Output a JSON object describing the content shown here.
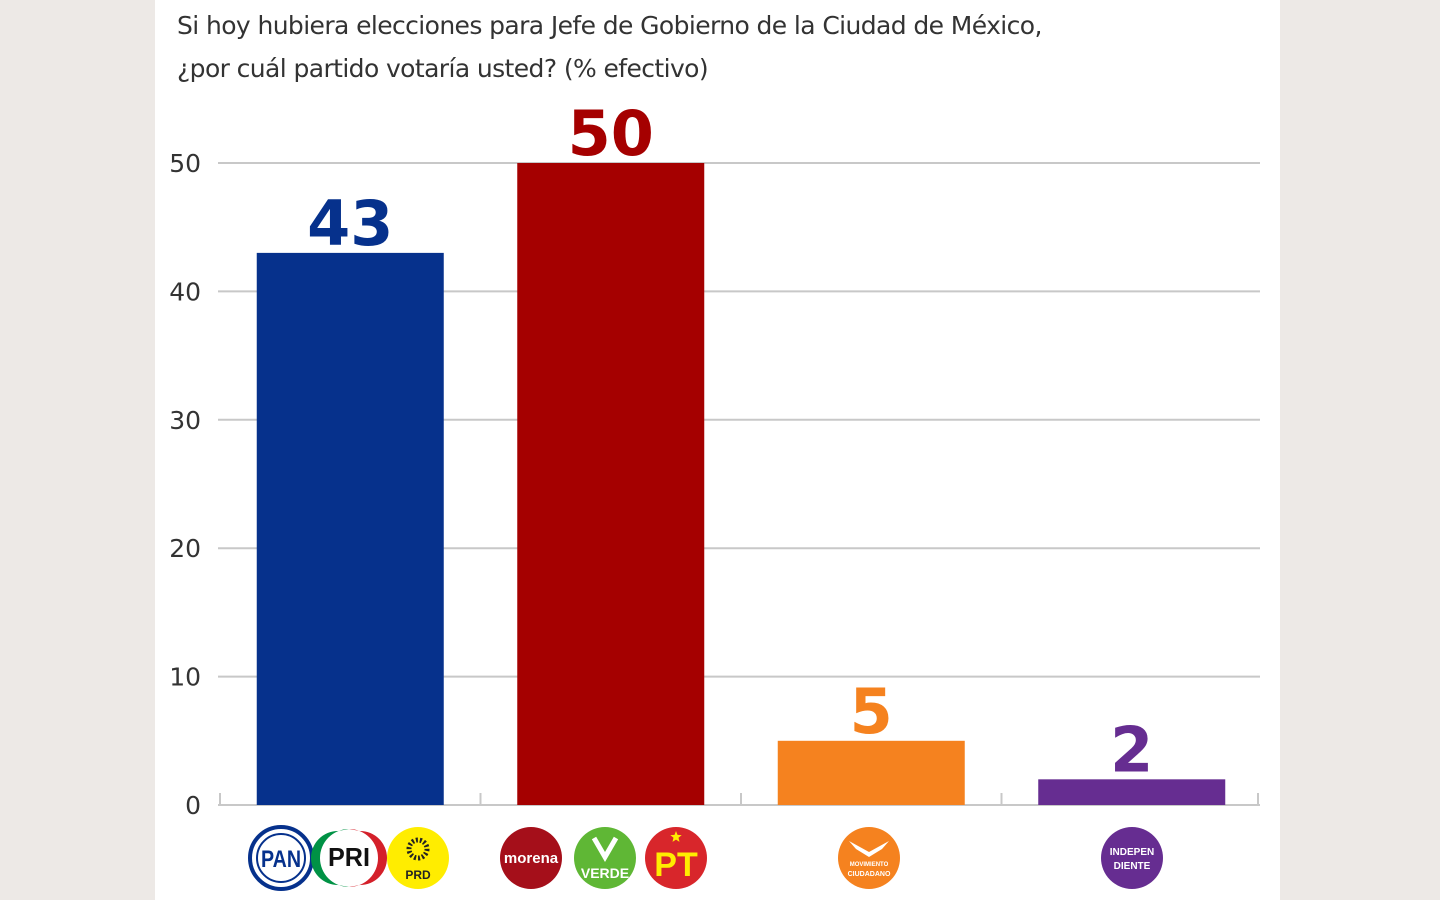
{
  "title_lines": [
    "Si hoy hubiera elecciones para Jefe de Gobierno de la Ciudad de México,",
    "¿por cuál partido votaría usted? (% efectivo)"
  ],
  "chart_data": {
    "type": "bar",
    "title": "Si hoy hubiera elecciones para Jefe de Gobierno de la Ciudad de México, ¿por cuál partido votaría usted? (% efectivo)",
    "xlabel": "",
    "ylabel": "",
    "ylim": [
      0,
      50
    ],
    "yticks": [
      0,
      10,
      20,
      30,
      40,
      50
    ],
    "grid": true,
    "legend": "none",
    "categories": [
      "PAN-PRI-PRD",
      "Morena-Verde-PT",
      "Movimiento Ciudadano",
      "Independiente"
    ],
    "values": [
      43,
      50,
      5,
      2
    ],
    "colors": [
      "#06318c",
      "#a50000",
      "#f5821f",
      "#662d91"
    ],
    "data_labels": [
      "43",
      "50",
      "5",
      "2"
    ]
  },
  "party_logos": [
    [
      {
        "name": "PAN",
        "text": "PAN"
      },
      {
        "name": "PRI",
        "text": "PRI"
      },
      {
        "name": "PRD",
        "text": "PRD"
      }
    ],
    [
      {
        "name": "Morena",
        "text": "morena"
      },
      {
        "name": "Verde",
        "text": "VERDE"
      },
      {
        "name": "PT",
        "text": "PT"
      }
    ],
    [
      {
        "name": "Movimiento Ciudadano",
        "text": "CIUDADANO",
        "subtext": "MOVIMIENTO"
      }
    ],
    [
      {
        "name": "Independiente",
        "text": "INDEPEN",
        "subtext": "DIENTE"
      }
    ]
  ],
  "colors": {
    "background": "#ede9e6",
    "card": "#ffffff",
    "gridline": "#c8c8c8",
    "text": "#333333"
  }
}
